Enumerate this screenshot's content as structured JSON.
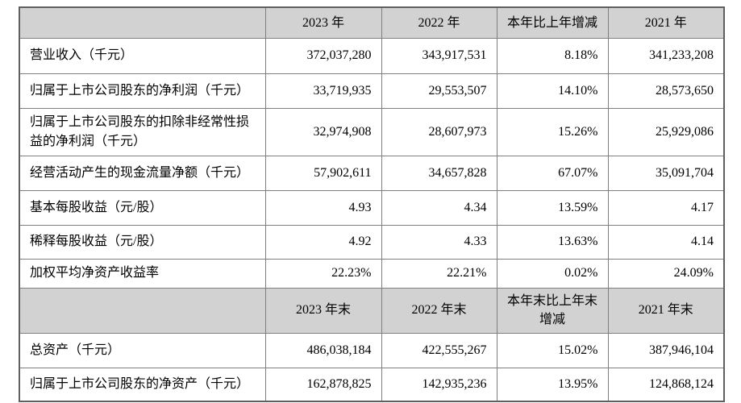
{
  "table": {
    "colors": {
      "header_bg": "#d2d2d2",
      "label_bg": "#d2d2d2",
      "cell_bg": "#ffffff",
      "border": "#7e7e7e",
      "text": "#000000"
    },
    "header1": {
      "col0": "",
      "cols": [
        "2023 年",
        "2022 年",
        "本年比上年增减",
        "2021 年"
      ]
    },
    "rows1": [
      {
        "label": "营业收入（千元）",
        "values": [
          "372,037,280",
          "343,917,531",
          "8.18%",
          "341,233,208"
        ]
      },
      {
        "label": "归属于上市公司股东的净利润（千元）",
        "values": [
          "33,719,935",
          "29,553,507",
          "14.10%",
          "28,573,650"
        ]
      },
      {
        "label": "归属于上市公司股东的扣除非经常性损益的净利润（千元）",
        "values": [
          "32,974,908",
          "28,607,973",
          "15.26%",
          "25,929,086"
        ]
      },
      {
        "label": "经营活动产生的现金流量净额（千元）",
        "values": [
          "57,902,611",
          "34,657,828",
          "67.07%",
          "35,091,704"
        ]
      },
      {
        "label": "基本每股收益（元/股）",
        "values": [
          "4.93",
          "4.34",
          "13.59%",
          "4.17"
        ]
      },
      {
        "label": "稀释每股收益（元/股）",
        "values": [
          "4.92",
          "4.33",
          "13.63%",
          "4.14"
        ]
      },
      {
        "label": "加权平均净资产收益率",
        "values": [
          "22.23%",
          "22.21%",
          "0.02%",
          "24.09%"
        ]
      }
    ],
    "header2": {
      "col0": "",
      "cols": [
        "2023 年末",
        "2022 年末",
        "本年末比上年末增减",
        "2021 年末"
      ]
    },
    "rows2": [
      {
        "label": "总资产（千元）",
        "values": [
          "486,038,184",
          "422,555,267",
          "15.02%",
          "387,946,104"
        ]
      },
      {
        "label": "归属于上市公司股东的净资产（千元）",
        "values": [
          "162,878,825",
          "142,935,236",
          "13.95%",
          "124,868,124"
        ]
      }
    ]
  }
}
